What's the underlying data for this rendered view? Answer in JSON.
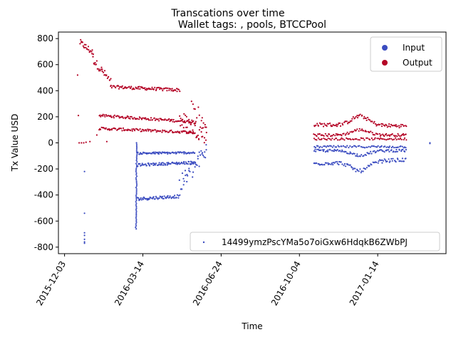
{
  "chart_data": {
    "type": "scatter",
    "suptitle": "Transcations over time",
    "title": "Wallet tags: , pools, BTCCPool",
    "xlabel": "Time",
    "ylabel": "Tx Value USD",
    "x_ticks": [
      "2015-12-03",
      "2016-03-14",
      "2016-06-24",
      "2016-10-04",
      "2017-01-14"
    ],
    "x_tick_days": [
      0,
      102,
      204,
      306,
      408
    ],
    "xlim_days": [
      -8,
      497
    ],
    "y_ticks": [
      -800,
      -600,
      -400,
      -200,
      0,
      200,
      400,
      600,
      800
    ],
    "ylim": [
      -850,
      850
    ],
    "legend_top": {
      "placement": "upper-right",
      "entries": [
        {
          "label": "Input",
          "color": "#3b4cc0"
        },
        {
          "label": "Output",
          "color": "#b40426"
        }
      ]
    },
    "legend_bottom": {
      "placement": "lower-right",
      "entries": [
        {
          "label": "14499ymzPscYMa5o7oiGxw6HdqkB6ZWbPJ",
          "color": "#3b4cc0"
        }
      ]
    },
    "series": [
      {
        "name": "Output",
        "color": "#b40426",
        "segments": [
          {
            "d0": 20,
            "d1": 37,
            "v0": 770,
            "v1": 690,
            "n": 22,
            "noise": 25
          },
          {
            "d0": 37,
            "d1": 60,
            "v0": 640,
            "v1": 470,
            "n": 28,
            "noise": 30
          },
          {
            "d0": 60,
            "d1": 150,
            "v0": 430,
            "v1": 405,
            "n": 90,
            "noise": 12
          },
          {
            "d0": 45,
            "d1": 170,
            "v0": 210,
            "v1": 160,
            "n": 110,
            "noise": 10
          },
          {
            "d0": 45,
            "d1": 170,
            "v0": 110,
            "v1": 80,
            "n": 110,
            "noise": 10
          },
          {
            "d0": 150,
            "d1": 185,
            "v0": 180,
            "v1": 60,
            "n": 45,
            "noise": 70
          },
          {
            "d0": 165,
            "d1": 185,
            "v0": 330,
            "v1": 100,
            "n": 12,
            "noise": 60
          },
          {
            "d0": 325,
            "d1": 445,
            "v0": 140,
            "v1": 130,
            "n": 100,
            "noise": 14,
            "bump": 70
          },
          {
            "d0": 325,
            "d1": 445,
            "v0": 60,
            "v1": 60,
            "n": 90,
            "noise": 10,
            "bump": 40
          },
          {
            "d0": 325,
            "d1": 445,
            "v0": 30,
            "v1": 30,
            "n": 70,
            "noise": 8
          }
        ],
        "points": [
          [
            17,
            520
          ],
          [
            18,
            210
          ],
          [
            19,
            0
          ],
          [
            22,
            0
          ],
          [
            25,
            0
          ],
          [
            28,
            5
          ],
          [
            33,
            10
          ],
          [
            42,
            60
          ],
          [
            55,
            10
          ]
        ]
      },
      {
        "name": "Input",
        "color": "#3b4cc0",
        "segments": [
          {
            "d0": 93,
            "d1": 94,
            "v0": -660,
            "v1": 0,
            "n": 55,
            "noise": 0
          },
          {
            "d0": 95,
            "d1": 150,
            "v0": -430,
            "v1": -410,
            "n": 60,
            "noise": 12
          },
          {
            "d0": 95,
            "d1": 170,
            "v0": -170,
            "v1": -150,
            "n": 80,
            "noise": 10
          },
          {
            "d0": 95,
            "d1": 170,
            "v0": -80,
            "v1": -75,
            "n": 80,
            "noise": 8
          },
          {
            "d0": 150,
            "d1": 185,
            "v0": -330,
            "v1": -60,
            "n": 40,
            "noise": 70
          },
          {
            "d0": 325,
            "d1": 445,
            "v0": -160,
            "v1": -130,
            "n": 95,
            "noise": 14,
            "bump": -70
          },
          {
            "d0": 325,
            "d1": 445,
            "v0": -60,
            "v1": -60,
            "n": 90,
            "noise": 10,
            "bump": -35
          },
          {
            "d0": 325,
            "d1": 445,
            "v0": -30,
            "v1": -30,
            "n": 70,
            "noise": 8
          }
        ],
        "points": [
          [
            26,
            -220
          ],
          [
            26,
            -540
          ],
          [
            26,
            -690
          ],
          [
            26,
            -710
          ],
          [
            26,
            -740
          ],
          [
            26,
            -760
          ],
          [
            26,
            -770
          ],
          [
            476,
            0
          ],
          [
            476,
            -5
          ]
        ]
      }
    ]
  }
}
